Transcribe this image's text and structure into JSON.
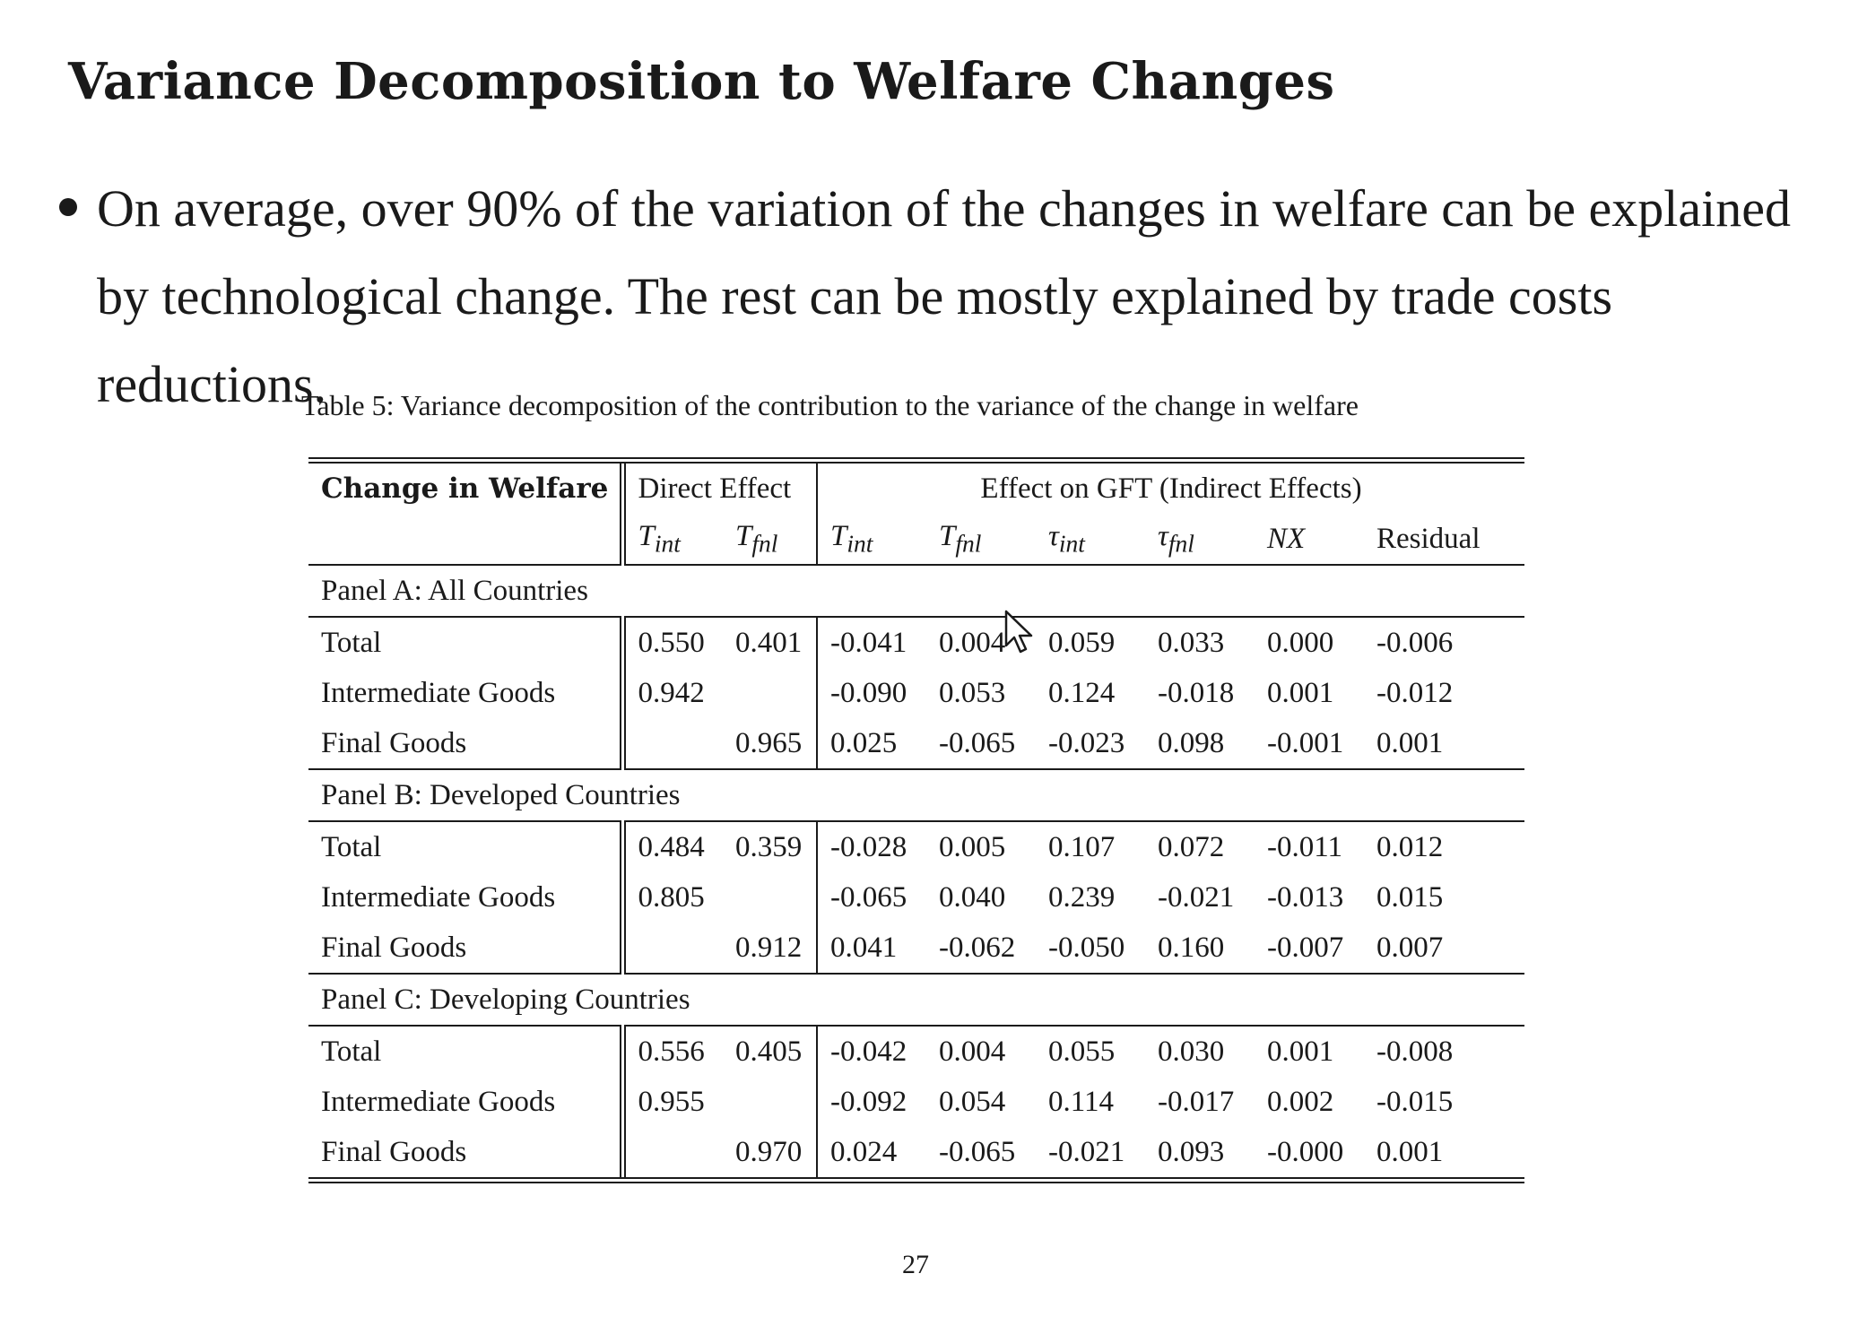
{
  "title": "Variance Decomposition to Welfare Changes",
  "bullet": "On average, over 90% of the variation of the changes in welfare can be explained by technological change.  The rest can be mostly explained by trade costs reductions.",
  "caption": "Table 5: Variance decomposition of the contribution to the variance of the change in welfare",
  "table": {
    "header_col1": "Change in Welfare",
    "header_direct": "Direct Effect",
    "header_indirect": "Effect on GFT (Indirect Effects)",
    "sub_base": [
      "T",
      "T",
      "T",
      "T",
      "τ",
      "τ",
      "NX",
      "Residual"
    ],
    "sub_sub": [
      "int",
      "fnl",
      "int",
      "fnl",
      "int",
      "fnl",
      "",
      ""
    ],
    "panels": [
      {
        "label": "Panel A: All Countries",
        "rows": [
          {
            "name": "Total",
            "values": [
              "0.550",
              "0.401",
              "-0.041",
              "0.004",
              "0.059",
              "0.033",
              "0.000",
              "-0.006"
            ]
          },
          {
            "name": "Intermediate Goods",
            "values": [
              "0.942",
              "",
              "-0.090",
              "0.053",
              "0.124",
              "-0.018",
              "0.001",
              "-0.012"
            ]
          },
          {
            "name": "Final Goods",
            "values": [
              "",
              "0.965",
              "0.025",
              "-0.065",
              "-0.023",
              "0.098",
              "-0.001",
              "0.001"
            ]
          }
        ]
      },
      {
        "label": "Panel B: Developed Countries",
        "rows": [
          {
            "name": "Total",
            "values": [
              "0.484",
              "0.359",
              "-0.028",
              "0.005",
              "0.107",
              "0.072",
              "-0.011",
              "0.012"
            ]
          },
          {
            "name": "Intermediate Goods",
            "values": [
              "0.805",
              "",
              "-0.065",
              "0.040",
              "0.239",
              "-0.021",
              "-0.013",
              "0.015"
            ]
          },
          {
            "name": "Final Goods",
            "values": [
              "",
              "0.912",
              "0.041",
              "-0.062",
              "-0.050",
              "0.160",
              "-0.007",
              "0.007"
            ]
          }
        ]
      },
      {
        "label": "Panel C: Developing Countries",
        "rows": [
          {
            "name": "Total",
            "values": [
              "0.556",
              "0.405",
              "-0.042",
              "0.004",
              "0.055",
              "0.030",
              "0.001",
              "-0.008"
            ]
          },
          {
            "name": "Intermediate Goods",
            "values": [
              "0.955",
              "",
              "-0.092",
              "0.054",
              "0.114",
              "-0.017",
              "0.002",
              "-0.015"
            ]
          },
          {
            "name": "Final Goods",
            "values": [
              "",
              "0.970",
              "0.024",
              "-0.065",
              "-0.021",
              "0.093",
              "-0.000",
              "0.001"
            ]
          }
        ]
      }
    ]
  },
  "page_number": "27",
  "icons": {
    "cursor": "mouse-pointer-icon"
  }
}
